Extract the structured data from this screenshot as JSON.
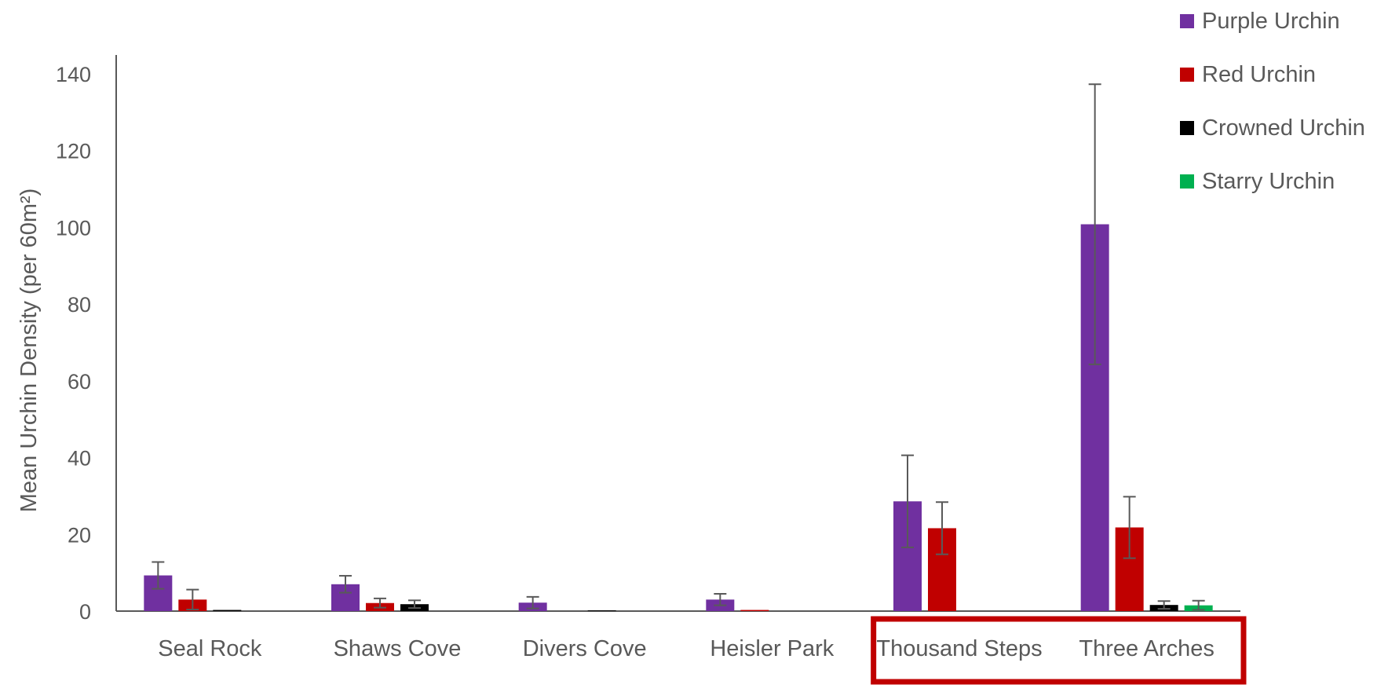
{
  "chart_data": {
    "type": "bar",
    "title": "",
    "xlabel": "",
    "ylabel": "Mean Urchin Density (per 60m²)",
    "ylim": [
      0,
      140
    ],
    "yticks": [
      0,
      20,
      40,
      60,
      80,
      100,
      120,
      140
    ],
    "grid": false,
    "legend_position": "top-right",
    "error_bars": true,
    "categories": [
      "Seal Rock",
      "Shaws Cove",
      "Divers Cove",
      "Heisler Park",
      "Thousand Steps",
      "Three Arches"
    ],
    "series": [
      {
        "name": "Purple Urchin",
        "color": "#7030A0",
        "values": [
          9.3,
          7.0,
          2.2,
          3.0,
          28.6,
          100.8
        ],
        "errors": [
          3.5,
          2.2,
          1.5,
          1.5,
          12.0,
          36.5
        ]
      },
      {
        "name": "Red Urchin",
        "color": "#C00000",
        "values": [
          3.0,
          2.1,
          0,
          0.3,
          21.6,
          21.8
        ],
        "errors": [
          2.6,
          1.2,
          0,
          0,
          6.8,
          8.0
        ]
      },
      {
        "name": "Crowned Urchin",
        "color": "#000000",
        "values": [
          0.3,
          1.8,
          0.2,
          0,
          0,
          1.6
        ],
        "errors": [
          0,
          1.0,
          0,
          0,
          0,
          1.0
        ]
      },
      {
        "name": "Starry Urchin",
        "color": "#00B050",
        "values": [
          0,
          0,
          0,
          0,
          0,
          1.5
        ],
        "errors": [
          0,
          0,
          0,
          0,
          0,
          1.2
        ]
      }
    ],
    "highlight": {
      "categories": [
        "Thousand Steps",
        "Three Arches"
      ],
      "color": "#C00000"
    }
  }
}
